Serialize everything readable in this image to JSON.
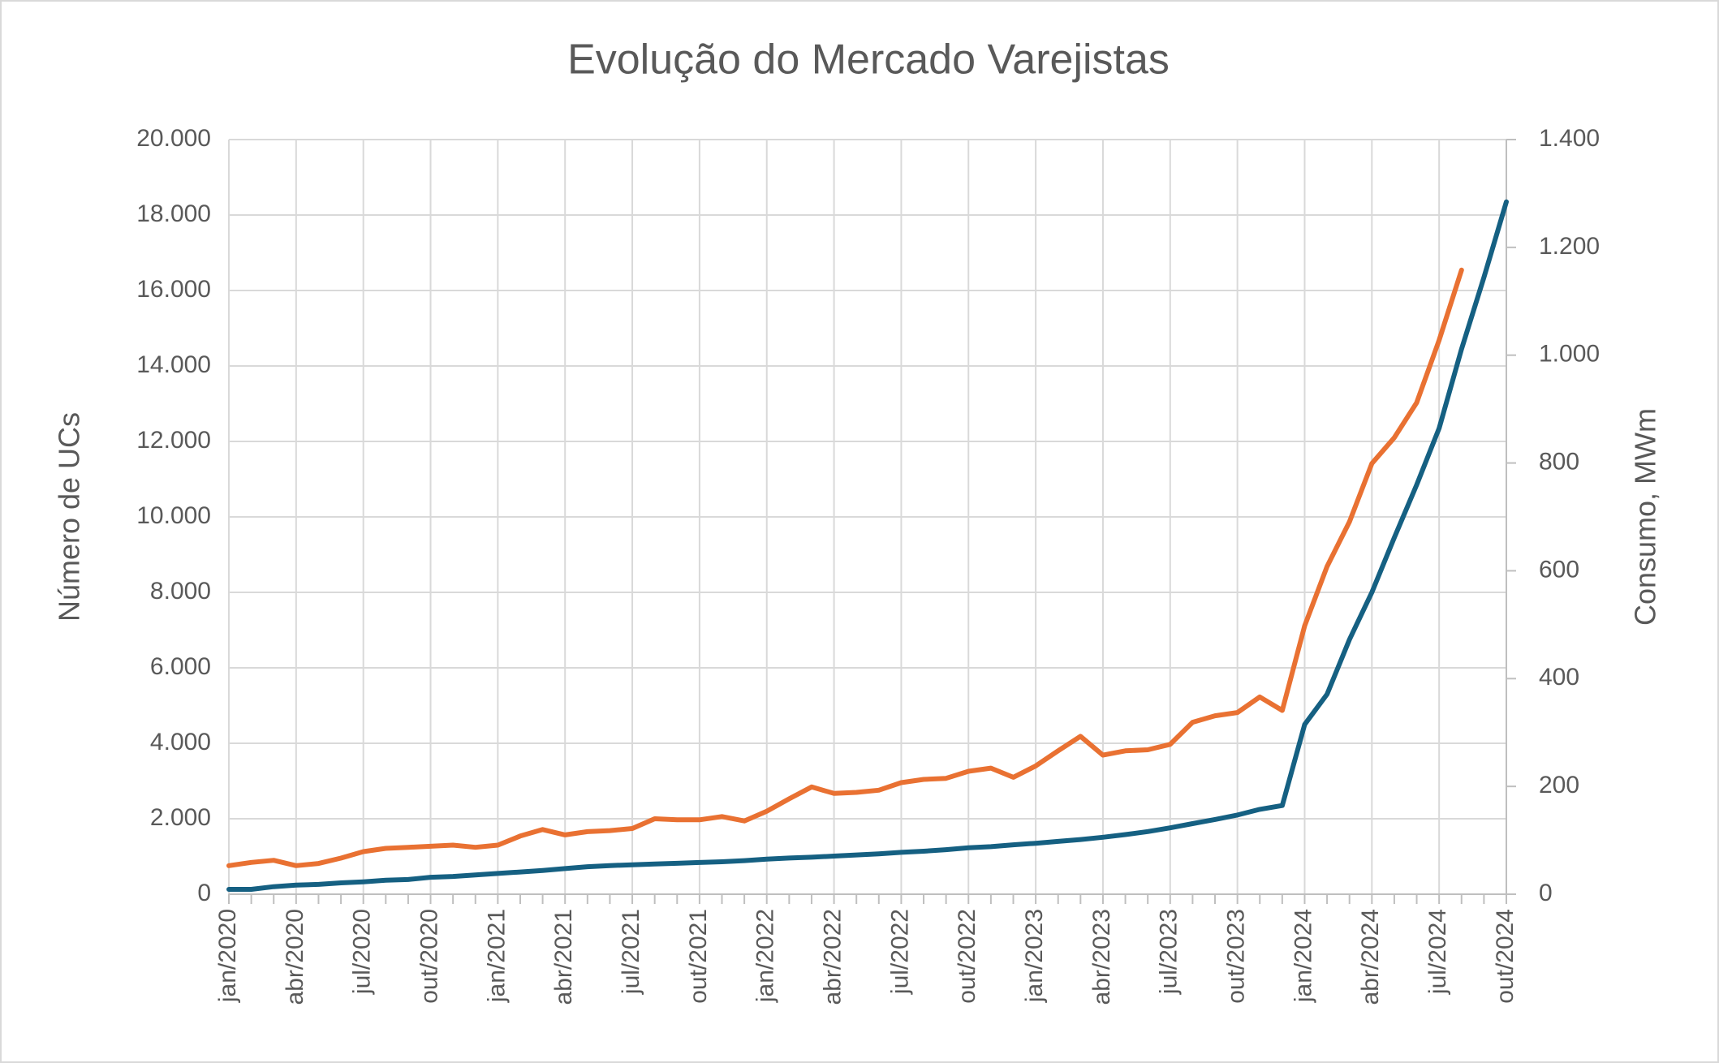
{
  "chart_data": {
    "type": "line",
    "title": "Evolução do Mercado Varejistas",
    "y_label": "Número de UCs",
    "y2_label": "Consumo, MWm",
    "categories": [
      "jan/2020",
      null,
      null,
      "abr/2020",
      null,
      null,
      "jul/2020",
      null,
      null,
      "out/2020",
      null,
      null,
      "jan/2021",
      null,
      null,
      "abr/2021",
      null,
      null,
      "jul/2021",
      null,
      null,
      "out/2021",
      null,
      null,
      "jan/2022",
      null,
      null,
      "abr/2022",
      null,
      null,
      "jul/2022",
      null,
      null,
      "out/2022",
      null,
      null,
      "jan/2023",
      null,
      null,
      "abr/2023",
      null,
      null,
      "jul/2023",
      null,
      null,
      "out/2023",
      null,
      null,
      "jan/2024",
      null,
      null,
      "abr/2024",
      null,
      null,
      "jul/2024",
      null,
      null,
      "out/2024"
    ],
    "series": [
      {
        "color": "#156082",
        "values": [
          130,
          130,
          200,
          240,
          260,
          300,
          330,
          370,
          390,
          450,
          470,
          510,
          550,
          590,
          630,
          680,
          730,
          760,
          780,
          800,
          820,
          840,
          860,
          890,
          930,
          960,
          980,
          1010,
          1040,
          1070,
          1110,
          1140,
          1180,
          1230,
          1260,
          1310,
          1350,
          1400,
          1450,
          1510,
          1580,
          1660,
          1760,
          1870,
          1980,
          2100,
          2250,
          2350,
          4500,
          5300,
          6750,
          8000,
          9450,
          10850,
          12350,
          14450,
          16350,
          18350
        ]
      },
      {
        "color": "#e97132",
        "axis": "y2",
        "values": [
          53,
          59,
          63,
          53,
          57,
          67,
          79,
          85,
          87,
          89,
          91,
          87,
          91,
          108,
          120,
          110,
          116,
          118,
          122,
          140,
          138,
          138,
          144,
          136,
          154,
          177,
          199,
          187,
          189,
          193,
          207,
          213,
          215,
          228,
          234,
          217,
          238,
          266,
          293,
          258,
          266,
          268,
          278,
          319,
          331,
          337,
          366,
          341,
          498,
          608,
          691,
          799,
          847,
          912,
          1028,
          1158,
          null,
          null
        ]
      }
    ],
    "ylim": [
      0,
      20000
    ],
    "yticks": [
      0,
      {
        "value": 2000,
        "label": "2.000"
      },
      {
        "value": 4000,
        "label": "4.000"
      },
      {
        "value": 6000,
        "label": "6.000"
      },
      {
        "value": 8000,
        "label": "8.000"
      },
      {
        "value": 10000,
        "label": "10.000"
      },
      {
        "value": 12000,
        "label": "12.000"
      },
      {
        "value": 14000,
        "label": "14.000"
      },
      {
        "value": 16000,
        "label": "16.000"
      },
      {
        "value": 18000,
        "label": "18.000"
      },
      {
        "value": 20000,
        "label": "20.000"
      }
    ],
    "y2lim": [
      0,
      1400
    ],
    "y2ticks": [
      0,
      200,
      400,
      600,
      800,
      {
        "value": 1000,
        "label": "1.000"
      },
      {
        "value": 1200,
        "label": "1.200"
      },
      {
        "value": 1400,
        "label": "1.400"
      }
    ],
    "grid": true
  }
}
